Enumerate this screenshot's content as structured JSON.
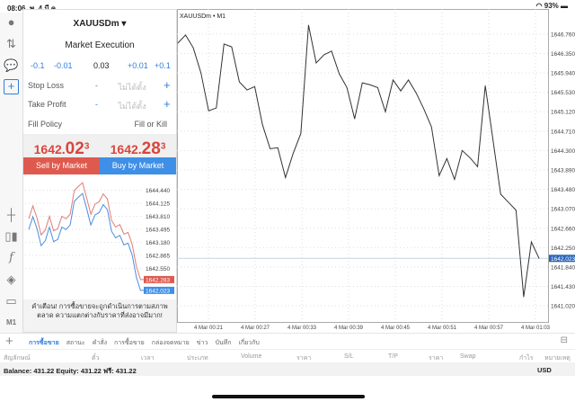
{
  "status": {
    "time": "08:06",
    "date": "พ. 4 มี.ค.",
    "battery": "93%"
  },
  "toolbar": {
    "icons": [
      "user-icon",
      "transfer-icon",
      "chat-icon",
      "new-order-icon",
      "crosshair-icon",
      "candles-icon",
      "function-icon",
      "objects-icon",
      "layout-icon"
    ],
    "timeframe": "M1"
  },
  "order": {
    "symbol": "XAUUSDm ▾",
    "execution": "Market Execution",
    "steps": [
      "-0.1",
      "-0.01",
      "+0.01",
      "+0.1"
    ],
    "volume": "0.03",
    "stop_loss": {
      "label": "Stop Loss",
      "minus": "-",
      "value": "ไม่ได้ตั้ง",
      "plus": "+"
    },
    "take_profit": {
      "label": "Take Profit",
      "minus": "-",
      "value": "ไม่ได้ตั้ง",
      "plus": "+"
    },
    "fill_policy": {
      "label": "Fill Policy",
      "value": "Fill or Kill"
    },
    "sell_price": {
      "big": "1642.",
      "main": "02",
      "sup": "3"
    },
    "buy_price": {
      "big": "1642.",
      "main": "28",
      "sup": "3"
    },
    "sell_label": "Sell by Market",
    "buy_label": "Buy by Market",
    "warning": "คำเตือน! การซื้อขายจะถูกดำเนินการตามสภาพตลาด ความแตกต่างกับราคาที่ส่งอาจมีมาก!",
    "colors": {
      "sell": "#df5a4e",
      "buy": "#3f8fe6"
    }
  },
  "mini_chart": {
    "type": "line",
    "yticks": [
      "1644.440",
      "1644.125",
      "1643.810",
      "1643.495",
      "1643.180",
      "1642.865",
      "1642.550"
    ],
    "ylim": [
      1641.89,
      1644.71
    ],
    "bid_label": "1642.023",
    "ask_label": "1642.283",
    "bid": [
      1643.49,
      1643.8,
      1643.51,
      1643.1,
      1643.22,
      1643.55,
      1643.2,
      1643.25,
      1643.55,
      1643.49,
      1643.6,
      1644.17,
      1644.27,
      1644.36,
      1643.99,
      1643.6,
      1643.84,
      1643.9,
      1644.09,
      1643.97,
      1643.45,
      1643.29,
      1643.35,
      1643.12,
      1643.16,
      1642.87,
      1642.34,
      1642.023,
      1642.023
    ],
    "spread": 0.26
  },
  "chart_data": {
    "type": "line",
    "title": "XAUUSDm • M1",
    "xticks": [
      "4 Mar 00:21",
      "4 Mar 00:27",
      "4 Mar 00:33",
      "4 Mar 00:39",
      "4 Mar 00:45",
      "4 Mar 00:51",
      "4 Mar 00:57",
      "4 Mar 01:03"
    ],
    "yticks": [
      "1646.760",
      "1646.350",
      "1645.940",
      "1645.530",
      "1645.120",
      "1644.710",
      "1644.300",
      "1643.890",
      "1643.480",
      "1643.070",
      "1642.660",
      "1642.250",
      "1641.840",
      "1641.430",
      "1641.020"
    ],
    "ylim": [
      1640.68,
      1647.29
    ],
    "current_price": "1642.023",
    "values": [
      1646.57,
      1646.74,
      1646.47,
      1645.94,
      1645.14,
      1645.2,
      1646.55,
      1646.49,
      1645.75,
      1645.58,
      1645.65,
      1644.85,
      1644.34,
      1644.36,
      1643.73,
      1644.24,
      1644.66,
      1646.95,
      1646.15,
      1646.32,
      1646.4,
      1645.92,
      1645.63,
      1644.97,
      1645.73,
      1645.69,
      1645.63,
      1645.12,
      1645.79,
      1645.56,
      1645.79,
      1645.52,
      1645.18,
      1644.8,
      1643.77,
      1644.13,
      1643.69,
      1644.3,
      1644.15,
      1643.96,
      1645.67,
      1644.53,
      1643.38,
      1643.21,
      1643.04,
      1641.21,
      1642.37,
      1642.023
    ],
    "grid": true
  },
  "bottom": {
    "add": "+",
    "tabs": [
      "การซื้อขาย",
      "สถานะ",
      "คำสั่ง",
      "การซื้อขาย",
      "กล่องจดหมาย",
      "ข่าว",
      "บันทึก",
      "เกี่ยวกับ"
    ],
    "columns": [
      "สัญลักษณ์",
      "ตั๋ว",
      "เวลา",
      "ประเภท",
      "Volume",
      "ราคา",
      "S/L",
      "T/P",
      "ราคา",
      "Swap",
      "กำไร",
      "หมายเหตุ"
    ],
    "balance": "Balance: 431.22 Equity: 431.22 ฟรี: 431.22",
    "currency": "USD"
  }
}
